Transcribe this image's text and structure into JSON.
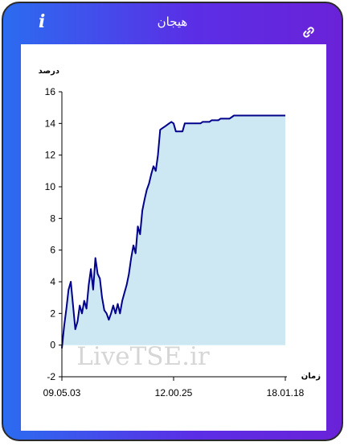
{
  "header": {
    "title": "هیجان",
    "info_icon": "info-icon",
    "link_icon": "link-icon",
    "gradient_start": "#2b6cf0",
    "gradient_end": "#6a22d8"
  },
  "watermark": "LiveTSE.ir",
  "chart_data": {
    "type": "area",
    "ylabel": "درصد",
    "xlabel": "زمان",
    "ylim": [
      -2,
      16
    ],
    "yticks": [
      -2,
      0,
      2,
      4,
      6,
      8,
      10,
      12,
      14,
      16
    ],
    "xticks": [
      "09.05.03",
      "12.00.25",
      "18.01.18"
    ],
    "grid": false,
    "line_color": "#00008b",
    "fill_color": "#cde8f2",
    "x": [
      0,
      1,
      2,
      3,
      4,
      5,
      6,
      7,
      8,
      9,
      10,
      11,
      12,
      13,
      14,
      15,
      16,
      17,
      18,
      19,
      20,
      21,
      22,
      23,
      24,
      25,
      26,
      27,
      28,
      29,
      30,
      31,
      32,
      33,
      34,
      35,
      36,
      37,
      38,
      39,
      40,
      41,
      42,
      43,
      44,
      45,
      46,
      47,
      48,
      49,
      50,
      51,
      52,
      53,
      54,
      55,
      56,
      57,
      58,
      59,
      60,
      61,
      62,
      63,
      64,
      65,
      66,
      67,
      68,
      69,
      70,
      71,
      72,
      73,
      74,
      75,
      76,
      77,
      78,
      79,
      80,
      81,
      82,
      83,
      84,
      85,
      86,
      87,
      88,
      89,
      90,
      91,
      92,
      93,
      94,
      95,
      96,
      97,
      98,
      99,
      100
    ],
    "values": [
      -0.2,
      1.2,
      2.3,
      3.5,
      4.0,
      2.5,
      1.0,
      1.5,
      2.5,
      2.0,
      2.8,
      2.3,
      3.8,
      4.8,
      3.5,
      5.5,
      4.5,
      4.2,
      3.0,
      2.2,
      2.0,
      1.6,
      2.0,
      2.5,
      2.0,
      2.6,
      2.0,
      2.8,
      3.3,
      3.8,
      4.5,
      5.5,
      6.3,
      5.8,
      7.5,
      7.0,
      8.5,
      9.2,
      9.8,
      10.2,
      10.8,
      11.3,
      11.0,
      12.0,
      13.6,
      13.7,
      13.8,
      13.9,
      14.0,
      14.1,
      14.0,
      13.5,
      13.5,
      13.5,
      13.5,
      14.0,
      14.0,
      14.0,
      14.0,
      14.0,
      14.0,
      14.0,
      14.0,
      14.1,
      14.1,
      14.1,
      14.1,
      14.2,
      14.2,
      14.2,
      14.2,
      14.3,
      14.3,
      14.3,
      14.3,
      14.3,
      14.4,
      14.5,
      14.5,
      14.5,
      14.5,
      14.5,
      14.5,
      14.5,
      14.5,
      14.5,
      14.5,
      14.5,
      14.5,
      14.5,
      14.5,
      14.5,
      14.5,
      14.5,
      14.5,
      14.5,
      14.5,
      14.5,
      14.5,
      14.5,
      14.5
    ]
  }
}
